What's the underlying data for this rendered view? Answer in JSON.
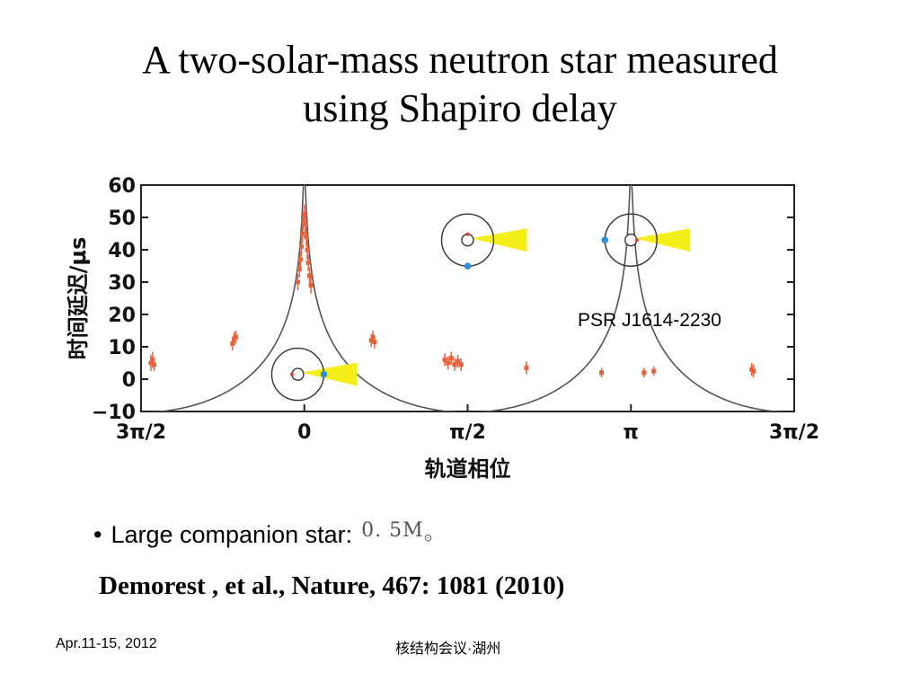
{
  "slide": {
    "title_line1": "A two-solar-mass neutron star measured",
    "title_line2": "using Shapiro delay",
    "bullet_marker": "•",
    "bullet_text": "Large companion star:",
    "mass_value": "0. 5M",
    "mass_symbol": "⊙",
    "citation": "Demorest , et al.,  Nature, 467: 1081 (2010)",
    "footer_left": "Apr.11-15, 2012",
    "footer_center": "核结构会议·湖州"
  },
  "chart_data": {
    "type": "scatter",
    "title": "",
    "annotation": "PSR J1614-2230",
    "xlabel": "轨道相位",
    "ylabel": "时间延迟/μs",
    "xlim": [
      -0.5,
      1.5
    ],
    "ylim": [
      -10,
      60
    ],
    "xtick_values": [
      -0.5,
      0,
      0.5,
      1,
      1.5
    ],
    "xtick_labels": [
      "3π/2",
      "0",
      "π/2",
      "π",
      "3π/2"
    ],
    "ytick_values": [
      -10,
      0,
      10,
      20,
      30,
      40,
      50,
      60
    ],
    "ytick_labels": [
      "−10",
      "0",
      "10",
      "20",
      "30",
      "40",
      "50",
      "60"
    ],
    "grid": false,
    "colors": {
      "points": "#e8603c",
      "curve": "#555555",
      "beam": "#f5ee1a",
      "companion": "#2a8fd6",
      "pulsar": "#e23a2a"
    },
    "series": [
      {
        "kind": "points",
        "points": [
          {
            "x": -0.47,
            "y": 5,
            "err": 2.5
          },
          {
            "x": -0.465,
            "y": 6,
            "err": 2.5
          },
          {
            "x": -0.46,
            "y": 4.5,
            "err": 2
          },
          {
            "x": -0.22,
            "y": 11,
            "err": 2
          },
          {
            "x": -0.215,
            "y": 12.5,
            "err": 2
          },
          {
            "x": -0.21,
            "y": 13,
            "err": 2
          },
          {
            "x": -0.02,
            "y": 30,
            "err": 2.5
          },
          {
            "x": -0.015,
            "y": 34,
            "err": 2.5
          },
          {
            "x": -0.012,
            "y": 37,
            "err": 2.5
          },
          {
            "x": -0.009,
            "y": 41,
            "err": 3
          },
          {
            "x": -0.006,
            "y": 45,
            "err": 3
          },
          {
            "x": -0.003,
            "y": 49,
            "err": 3
          },
          {
            "x": 0.0,
            "y": 51,
            "err": 3
          },
          {
            "x": 0.003,
            "y": 48,
            "err": 3
          },
          {
            "x": 0.006,
            "y": 44,
            "err": 3
          },
          {
            "x": 0.009,
            "y": 40,
            "err": 3
          },
          {
            "x": 0.012,
            "y": 36,
            "err": 2.5
          },
          {
            "x": 0.016,
            "y": 32,
            "err": 2.5
          },
          {
            "x": 0.02,
            "y": 29,
            "err": 2.5
          },
          {
            "x": 0.205,
            "y": 12,
            "err": 2
          },
          {
            "x": 0.21,
            "y": 13,
            "err": 2
          },
          {
            "x": 0.215,
            "y": 11.5,
            "err": 2
          },
          {
            "x": 0.43,
            "y": 6,
            "err": 2
          },
          {
            "x": 0.44,
            "y": 5,
            "err": 2
          },
          {
            "x": 0.45,
            "y": 6.5,
            "err": 2
          },
          {
            "x": 0.46,
            "y": 4.5,
            "err": 2
          },
          {
            "x": 0.47,
            "y": 5.5,
            "err": 2
          },
          {
            "x": 0.48,
            "y": 4.5,
            "err": 2
          },
          {
            "x": 0.68,
            "y": 3.5,
            "err": 2
          },
          {
            "x": 0.91,
            "y": 2,
            "err": 1.5
          },
          {
            "x": 1.04,
            "y": 2,
            "err": 1.5
          },
          {
            "x": 1.07,
            "y": 2.5,
            "err": 1.5
          },
          {
            "x": 1.37,
            "y": 3,
            "err": 2
          },
          {
            "x": 1.375,
            "y": 2.5,
            "err": 2
          }
        ]
      },
      {
        "kind": "model_curve",
        "description": "Shapiro delay model"
      }
    ]
  },
  "insets": [
    {
      "center": [
        -0.02,
        1.5
      ],
      "companion_angle_deg": 0,
      "companion": "right"
    },
    {
      "center": [
        0.5,
        43
      ],
      "companion_angle_deg": 90,
      "companion": "bottom"
    },
    {
      "center": [
        1.0,
        43
      ],
      "companion_angle_deg": 180,
      "companion": "left"
    }
  ]
}
